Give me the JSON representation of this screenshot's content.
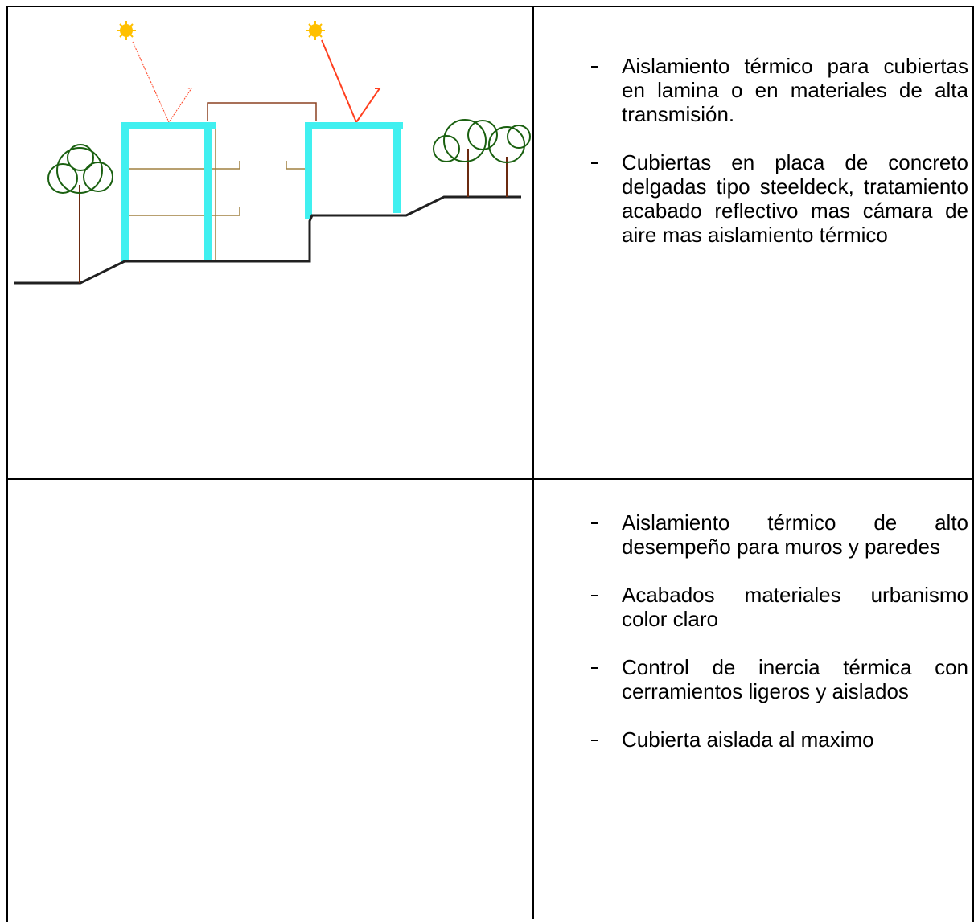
{
  "rows": [
    {
      "items": [
        "Aislamiento térmico para cubiertas en lamina o en materiales de alta transmisión.",
        "Cubiertas en placa de concreto delgadas tipo steeldeck, tratamiento acabado reflectivo mas cámara de aire mas aislamiento térmico"
      ]
    },
    {
      "items": [
        "Aislamiento térmico  de alto desempeño para  muros y paredes",
        "Acabados materiales urbanismo color claro",
        "Control de inercia térmica con cerramientos ligeros y aislados",
        "Cubierta aislada al maximo"
      ]
    }
  ]
}
